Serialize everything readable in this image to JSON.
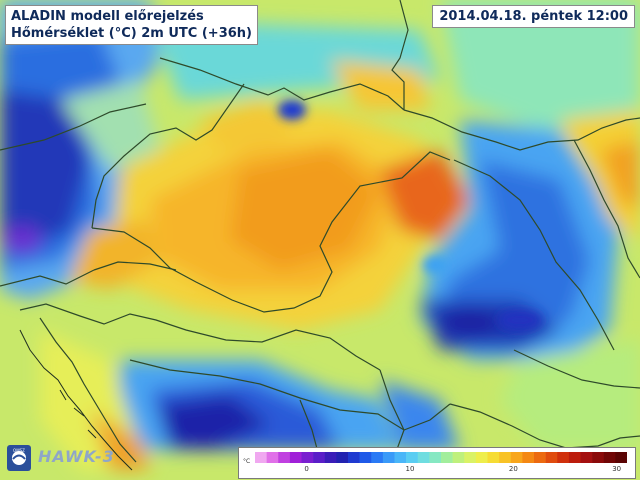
{
  "title": {
    "line1": "ALADIN modell előrejelzés",
    "line2": "Hőmérséklet (°C) 2m UTC (+36h)"
  },
  "date": "2014.04.18. péntek 12:00",
  "brand": {
    "logo_text": "OMSZ",
    "software": "HAWK-3"
  },
  "legend": {
    "unit": "°C",
    "ticks": [
      "0",
      "10",
      "20",
      "30"
    ],
    "min": -5,
    "max": 31,
    "colors": [
      "#f0a8f0",
      "#e070e8",
      "#c040e0",
      "#a020d8",
      "#7a1fd0",
      "#5a1ec8",
      "#3a1db8",
      "#2222b0",
      "#1f3ad0",
      "#1f5ae8",
      "#2a7af5",
      "#3a9af8",
      "#4ab6f8",
      "#5acdf2",
      "#6fdde0",
      "#86e8c2",
      "#a2ee9c",
      "#bff07c",
      "#daf266",
      "#eeee4c",
      "#f6dc34",
      "#f8c226",
      "#f8a61c",
      "#f48814",
      "#ec6a10",
      "#e04c0e",
      "#d0300c",
      "#bc1c0c",
      "#a41010",
      "#8a0a0a",
      "#700606",
      "#5a0404"
    ]
  }
}
